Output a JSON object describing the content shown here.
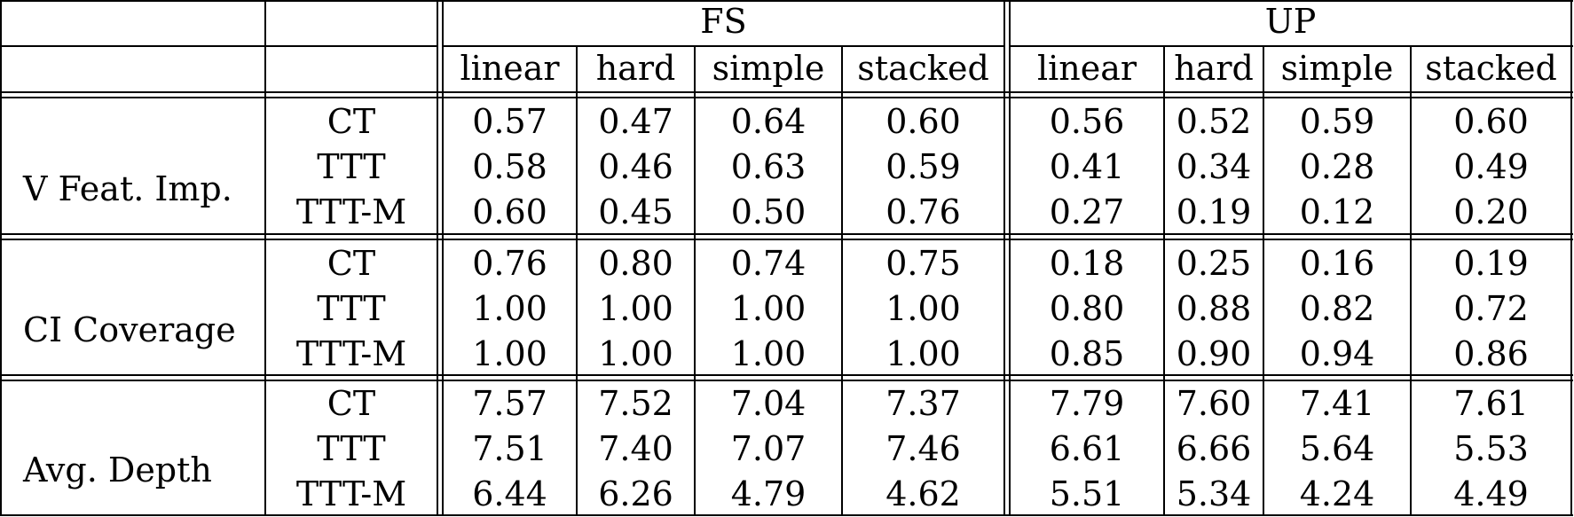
{
  "table": {
    "group_headers": [
      "FS",
      "UP"
    ],
    "column_headers": [
      "linear",
      "hard",
      "simple",
      "stacked",
      "linear",
      "hard",
      "simple",
      "stacked"
    ],
    "sections": [
      {
        "metric": "V Feat. Imp.",
        "rows": [
          {
            "method": "CT",
            "values": [
              "0.57",
              "0.47",
              "0.64",
              "0.60",
              "0.56",
              "0.52",
              "0.59",
              "0.60"
            ]
          },
          {
            "method": "TTT",
            "values": [
              "0.58",
              "0.46",
              "0.63",
              "0.59",
              "0.41",
              "0.34",
              "0.28",
              "0.49"
            ]
          },
          {
            "method": "TTT-M",
            "values": [
              "0.60",
              "0.45",
              "0.50",
              "0.76",
              "0.27",
              "0.19",
              "0.12",
              "0.20"
            ]
          }
        ]
      },
      {
        "metric": "CI Coverage",
        "rows": [
          {
            "method": "CT",
            "values": [
              "0.76",
              "0.80",
              "0.74",
              "0.75",
              "0.18",
              "0.25",
              "0.16",
              "0.19"
            ]
          },
          {
            "method": "TTT",
            "values": [
              "1.00",
              "1.00",
              "1.00",
              "1.00",
              "0.80",
              "0.88",
              "0.82",
              "0.72"
            ]
          },
          {
            "method": "TTT-M",
            "values": [
              "1.00",
              "1.00",
              "1.00",
              "1.00",
              "0.85",
              "0.90",
              "0.94",
              "0.86"
            ]
          }
        ]
      },
      {
        "metric": "Avg. Depth",
        "rows": [
          {
            "method": "CT",
            "values": [
              "7.57",
              "7.52",
              "7.04",
              "7.37",
              "7.79",
              "7.60",
              "7.41",
              "7.61"
            ]
          },
          {
            "method": "TTT",
            "values": [
              "7.51",
              "7.40",
              "7.07",
              "7.46",
              "6.61",
              "6.66",
              "5.64",
              "5.53"
            ]
          },
          {
            "method": "TTT-M",
            "values": [
              "6.44",
              "6.26",
              "4.79",
              "4.62",
              "5.51",
              "5.34",
              "4.24",
              "4.49"
            ]
          }
        ]
      }
    ]
  }
}
